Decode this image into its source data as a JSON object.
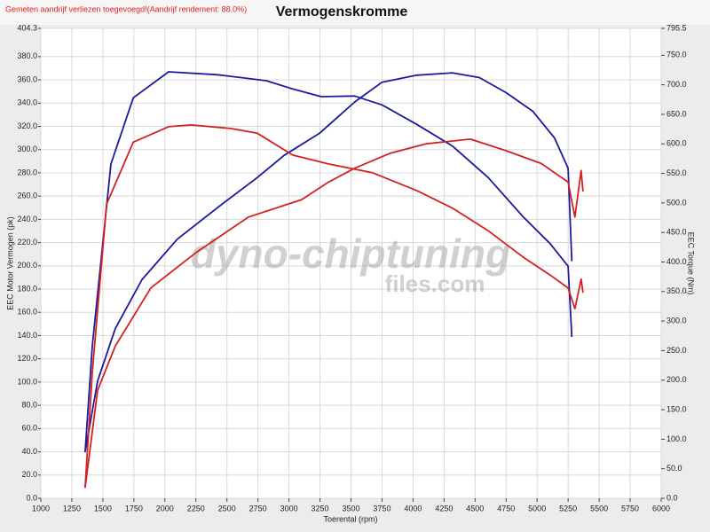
{
  "chart_data": {
    "type": "line",
    "title": "Vermogenskromme",
    "subtitle": "Gemeten aandrijf verliezen toegevoegd!(Aandrijf rendement: 88.0%)",
    "x_label": "Toerental (rpm)",
    "y_label": "EEC Motor Vermogen (pk)",
    "y2_label": "EEC Torque (Nm)",
    "watermark": [
      "dyno-chiptuning",
      "files.com"
    ],
    "grid": true,
    "xlim": [
      1000,
      6000
    ],
    "xticks": [
      1000,
      1250,
      1500,
      1750,
      2000,
      2250,
      2500,
      2750,
      3000,
      3250,
      3500,
      3750,
      4000,
      4250,
      4500,
      4750,
      5000,
      5250,
      5500,
      5750,
      6000
    ],
    "ylim": [
      0,
      404.3
    ],
    "yticks": [
      {
        "value": 0,
        "label": "0.0"
      },
      {
        "value": 20,
        "label": "20.0"
      },
      {
        "value": 40,
        "label": "40.0"
      },
      {
        "value": 60,
        "label": "60.0"
      },
      {
        "value": 80,
        "label": "80.0"
      },
      {
        "value": 100,
        "label": "100.0"
      },
      {
        "value": 120,
        "label": "120.0"
      },
      {
        "value": 140,
        "label": "140.0"
      },
      {
        "value": 160,
        "label": "160.0"
      },
      {
        "value": 180,
        "label": "180.0"
      },
      {
        "value": 200,
        "label": "200.0"
      },
      {
        "value": 220,
        "label": "220.0"
      },
      {
        "value": 240,
        "label": "240.0"
      },
      {
        "value": 260,
        "label": "260.0"
      },
      {
        "value": 280,
        "label": "280.0"
      },
      {
        "value": 300,
        "label": "300.0"
      },
      {
        "value": 320,
        "label": "320.0"
      },
      {
        "value": 340,
        "label": "340.0"
      },
      {
        "value": 360,
        "label": "360.0"
      },
      {
        "value": 380,
        "label": "380.0"
      },
      404.3
    ],
    "y2lim": [
      0,
      795.5
    ],
    "y2ticks": [
      {
        "value": 0,
        "label": "0.0"
      },
      {
        "value": 50,
        "label": "50.0"
      },
      {
        "value": 100,
        "label": "100.0"
      },
      {
        "value": 150,
        "label": "150.0"
      },
      {
        "value": 200,
        "label": "200.0"
      },
      {
        "value": 250,
        "label": "250.0"
      },
      {
        "value": 300,
        "label": "300.0"
      },
      {
        "value": 350,
        "label": "350.0"
      },
      {
        "value": 400,
        "label": "400.0"
      },
      {
        "value": 450,
        "label": "450.0"
      },
      {
        "value": 500,
        "label": "500.0"
      },
      {
        "value": 550,
        "label": "550.0"
      },
      {
        "value": 600,
        "label": "600.0"
      },
      {
        "value": 650,
        "label": "650.0"
      },
      {
        "value": 700,
        "label": "700.0"
      },
      {
        "value": 750,
        "label": "750.0"
      },
      795.5
    ],
    "series": [
      {
        "color": "#1a1aa0",
        "axis": "y2",
        "x": [
          1357,
          1415,
          1565,
          1745,
          2030,
          2425,
          2817,
          3030,
          3260,
          3530,
          3750,
          4030,
          4320,
          4605,
          4890,
          5105,
          5250,
          5280
        ],
        "values": [
          78,
          258,
          566,
          678,
          722,
          717,
          707,
          693,
          680,
          681,
          666,
          633,
          596,
          543,
          476,
          431,
          393,
          273
        ]
      },
      {
        "color": "#1a1aa0",
        "x": [
          1357,
          1458,
          1600,
          1815,
          2100,
          2460,
          2745,
          2960,
          3245,
          3530,
          3750,
          4030,
          4320,
          4535,
          4750,
          4965,
          5140,
          5250,
          5280
        ],
        "values": [
          40,
          101,
          146,
          188,
          223,
          253,
          276,
          295,
          314,
          341,
          358,
          364,
          366,
          362,
          349,
          333,
          310,
          284,
          204
        ]
      },
      {
        "color": "#d42020",
        "axis": "y2",
        "x": [
          1357,
          1415,
          1530,
          1745,
          2030,
          2210,
          2530,
          2745,
          3030,
          3318,
          3675,
          4030,
          4320,
          4605,
          4890,
          5105,
          5250,
          5305,
          5355,
          5370
        ],
        "values": [
          18,
          213,
          498,
          603,
          629,
          632,
          626,
          618,
          581,
          566,
          551,
          521,
          491,
          453,
          408,
          378,
          356,
          321,
          371,
          348
        ]
      },
      {
        "color": "#d42020",
        "x": [
          1357,
          1458,
          1600,
          1887,
          2245,
          2674,
          3103,
          3318,
          3530,
          3818,
          4104,
          4462,
          4750,
          5035,
          5250,
          5305,
          5355,
          5370
        ],
        "values": [
          9,
          93,
          131,
          181,
          211,
          242,
          257,
          272,
          284,
          297,
          305,
          309,
          299,
          288,
          272,
          242,
          282,
          264
        ]
      }
    ]
  }
}
